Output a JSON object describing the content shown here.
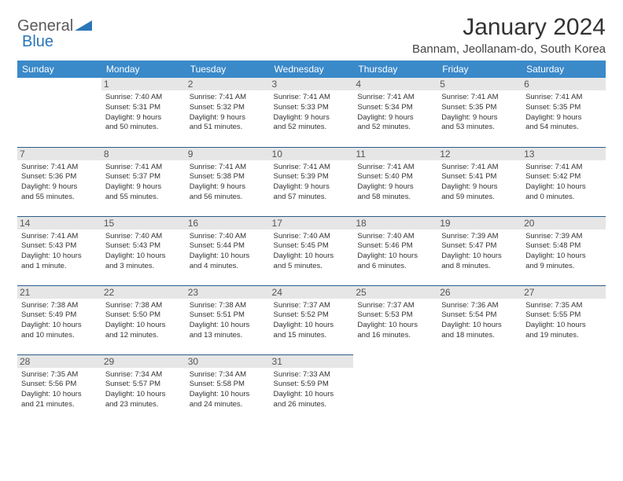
{
  "logo": {
    "text1": "General",
    "text2": "Blue",
    "color1": "#5a5a5a",
    "color2": "#2a76b8",
    "shape_color": "#2a76b8"
  },
  "title": "January 2024",
  "location": "Bannam, Jeollanam-do, South Korea",
  "styling": {
    "header_bg": "#3a89c9",
    "header_fg": "#ffffff",
    "daynum_bg": "#e6e6e6",
    "row_border": "#2a5d8a",
    "text_color": "#333333",
    "title_fontsize": 30,
    "location_fontsize": 15,
    "cell_fontsize": 9.5
  },
  "weekdays": [
    "Sunday",
    "Monday",
    "Tuesday",
    "Wednesday",
    "Thursday",
    "Friday",
    "Saturday"
  ],
  "weeks": [
    [
      {
        "blank": true
      },
      {
        "day": "1",
        "sunrise": "Sunrise: 7:40 AM",
        "sunset": "Sunset: 5:31 PM",
        "day1": "Daylight: 9 hours",
        "day2": "and 50 minutes."
      },
      {
        "day": "2",
        "sunrise": "Sunrise: 7:41 AM",
        "sunset": "Sunset: 5:32 PM",
        "day1": "Daylight: 9 hours",
        "day2": "and 51 minutes."
      },
      {
        "day": "3",
        "sunrise": "Sunrise: 7:41 AM",
        "sunset": "Sunset: 5:33 PM",
        "day1": "Daylight: 9 hours",
        "day2": "and 52 minutes."
      },
      {
        "day": "4",
        "sunrise": "Sunrise: 7:41 AM",
        "sunset": "Sunset: 5:34 PM",
        "day1": "Daylight: 9 hours",
        "day2": "and 52 minutes."
      },
      {
        "day": "5",
        "sunrise": "Sunrise: 7:41 AM",
        "sunset": "Sunset: 5:35 PM",
        "day1": "Daylight: 9 hours",
        "day2": "and 53 minutes."
      },
      {
        "day": "6",
        "sunrise": "Sunrise: 7:41 AM",
        "sunset": "Sunset: 5:35 PM",
        "day1": "Daylight: 9 hours",
        "day2": "and 54 minutes."
      }
    ],
    [
      {
        "day": "7",
        "sunrise": "Sunrise: 7:41 AM",
        "sunset": "Sunset: 5:36 PM",
        "day1": "Daylight: 9 hours",
        "day2": "and 55 minutes."
      },
      {
        "day": "8",
        "sunrise": "Sunrise: 7:41 AM",
        "sunset": "Sunset: 5:37 PM",
        "day1": "Daylight: 9 hours",
        "day2": "and 55 minutes."
      },
      {
        "day": "9",
        "sunrise": "Sunrise: 7:41 AM",
        "sunset": "Sunset: 5:38 PM",
        "day1": "Daylight: 9 hours",
        "day2": "and 56 minutes."
      },
      {
        "day": "10",
        "sunrise": "Sunrise: 7:41 AM",
        "sunset": "Sunset: 5:39 PM",
        "day1": "Daylight: 9 hours",
        "day2": "and 57 minutes."
      },
      {
        "day": "11",
        "sunrise": "Sunrise: 7:41 AM",
        "sunset": "Sunset: 5:40 PM",
        "day1": "Daylight: 9 hours",
        "day2": "and 58 minutes."
      },
      {
        "day": "12",
        "sunrise": "Sunrise: 7:41 AM",
        "sunset": "Sunset: 5:41 PM",
        "day1": "Daylight: 9 hours",
        "day2": "and 59 minutes."
      },
      {
        "day": "13",
        "sunrise": "Sunrise: 7:41 AM",
        "sunset": "Sunset: 5:42 PM",
        "day1": "Daylight: 10 hours",
        "day2": "and 0 minutes."
      }
    ],
    [
      {
        "day": "14",
        "sunrise": "Sunrise: 7:41 AM",
        "sunset": "Sunset: 5:43 PM",
        "day1": "Daylight: 10 hours",
        "day2": "and 1 minute."
      },
      {
        "day": "15",
        "sunrise": "Sunrise: 7:40 AM",
        "sunset": "Sunset: 5:43 PM",
        "day1": "Daylight: 10 hours",
        "day2": "and 3 minutes."
      },
      {
        "day": "16",
        "sunrise": "Sunrise: 7:40 AM",
        "sunset": "Sunset: 5:44 PM",
        "day1": "Daylight: 10 hours",
        "day2": "and 4 minutes."
      },
      {
        "day": "17",
        "sunrise": "Sunrise: 7:40 AM",
        "sunset": "Sunset: 5:45 PM",
        "day1": "Daylight: 10 hours",
        "day2": "and 5 minutes."
      },
      {
        "day": "18",
        "sunrise": "Sunrise: 7:40 AM",
        "sunset": "Sunset: 5:46 PM",
        "day1": "Daylight: 10 hours",
        "day2": "and 6 minutes."
      },
      {
        "day": "19",
        "sunrise": "Sunrise: 7:39 AM",
        "sunset": "Sunset: 5:47 PM",
        "day1": "Daylight: 10 hours",
        "day2": "and 8 minutes."
      },
      {
        "day": "20",
        "sunrise": "Sunrise: 7:39 AM",
        "sunset": "Sunset: 5:48 PM",
        "day1": "Daylight: 10 hours",
        "day2": "and 9 minutes."
      }
    ],
    [
      {
        "day": "21",
        "sunrise": "Sunrise: 7:38 AM",
        "sunset": "Sunset: 5:49 PM",
        "day1": "Daylight: 10 hours",
        "day2": "and 10 minutes."
      },
      {
        "day": "22",
        "sunrise": "Sunrise: 7:38 AM",
        "sunset": "Sunset: 5:50 PM",
        "day1": "Daylight: 10 hours",
        "day2": "and 12 minutes."
      },
      {
        "day": "23",
        "sunrise": "Sunrise: 7:38 AM",
        "sunset": "Sunset: 5:51 PM",
        "day1": "Daylight: 10 hours",
        "day2": "and 13 minutes."
      },
      {
        "day": "24",
        "sunrise": "Sunrise: 7:37 AM",
        "sunset": "Sunset: 5:52 PM",
        "day1": "Daylight: 10 hours",
        "day2": "and 15 minutes."
      },
      {
        "day": "25",
        "sunrise": "Sunrise: 7:37 AM",
        "sunset": "Sunset: 5:53 PM",
        "day1": "Daylight: 10 hours",
        "day2": "and 16 minutes."
      },
      {
        "day": "26",
        "sunrise": "Sunrise: 7:36 AM",
        "sunset": "Sunset: 5:54 PM",
        "day1": "Daylight: 10 hours",
        "day2": "and 18 minutes."
      },
      {
        "day": "27",
        "sunrise": "Sunrise: 7:35 AM",
        "sunset": "Sunset: 5:55 PM",
        "day1": "Daylight: 10 hours",
        "day2": "and 19 minutes."
      }
    ],
    [
      {
        "day": "28",
        "sunrise": "Sunrise: 7:35 AM",
        "sunset": "Sunset: 5:56 PM",
        "day1": "Daylight: 10 hours",
        "day2": "and 21 minutes."
      },
      {
        "day": "29",
        "sunrise": "Sunrise: 7:34 AM",
        "sunset": "Sunset: 5:57 PM",
        "day1": "Daylight: 10 hours",
        "day2": "and 23 minutes."
      },
      {
        "day": "30",
        "sunrise": "Sunrise: 7:34 AM",
        "sunset": "Sunset: 5:58 PM",
        "day1": "Daylight: 10 hours",
        "day2": "and 24 minutes."
      },
      {
        "day": "31",
        "sunrise": "Sunrise: 7:33 AM",
        "sunset": "Sunset: 5:59 PM",
        "day1": "Daylight: 10 hours",
        "day2": "and 26 minutes."
      },
      {
        "blank": true
      },
      {
        "blank": true
      },
      {
        "blank": true
      }
    ]
  ]
}
